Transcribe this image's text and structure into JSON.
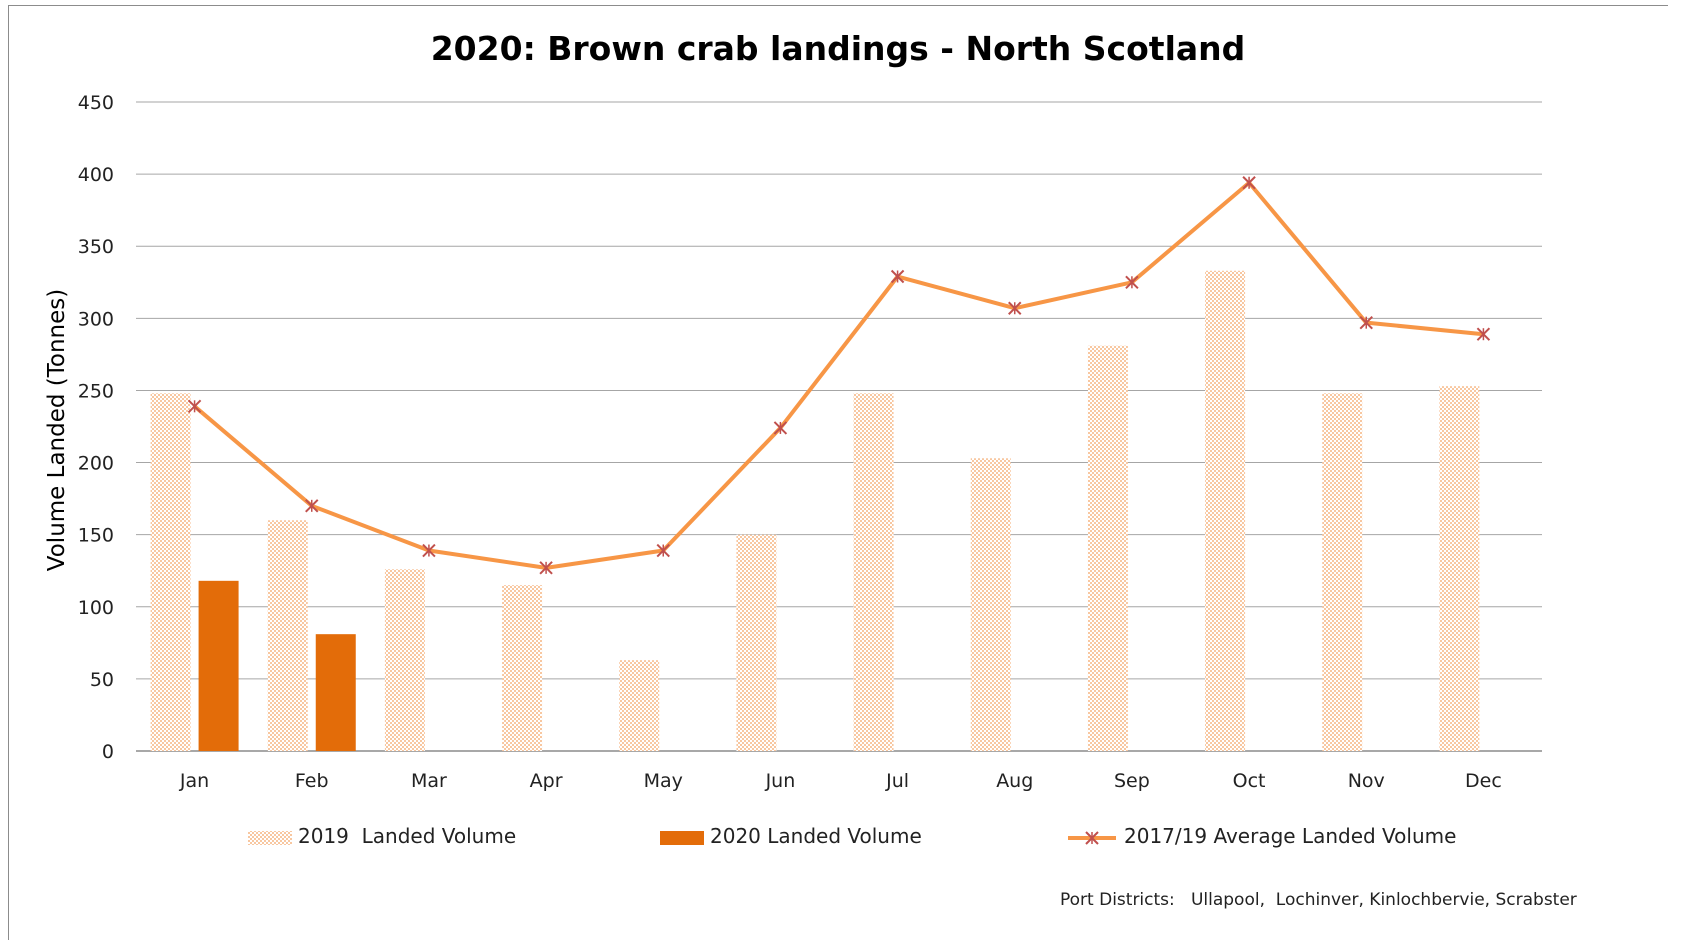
{
  "chart_data": {
    "type": "bar",
    "title": "2020: Brown crab landings - North Scotland",
    "ylabel": "Volume Landed (Tonnes)",
    "xlabel": "",
    "ylim": [
      0,
      450
    ],
    "yticks": [
      0,
      50,
      100,
      150,
      200,
      250,
      300,
      350,
      400,
      450
    ],
    "grid": true,
    "legend_position": "bottom",
    "categories": [
      "Jan",
      "Feb",
      "Mar",
      "Apr",
      "May",
      "Jun",
      "Jul",
      "Aug",
      "Sep",
      "Oct",
      "Nov",
      "Dec"
    ],
    "series": [
      {
        "name": "2019  Landed Volume",
        "type": "bar",
        "style": "pattern",
        "color": "#f8c7a0",
        "values": [
          248,
          160,
          126,
          115,
          63,
          150,
          248,
          203,
          281,
          333,
          248,
          253
        ]
      },
      {
        "name": "2020 Landed Volume",
        "type": "bar",
        "style": "solid",
        "color": "#e36c09",
        "values": [
          118,
          81,
          null,
          null,
          null,
          null,
          null,
          null,
          null,
          null,
          null,
          null
        ]
      },
      {
        "name": "2017/19 Average Landed Volume",
        "type": "line",
        "color": "#f79646",
        "marker_color": "#c0504d",
        "values": [
          239,
          170,
          139,
          127,
          139,
          224,
          329,
          307,
          325,
          394,
          297,
          289
        ]
      }
    ],
    "annotation": "Port Districts:   Ullapool,  Lochinver, Kinlochbervie, Scrabster"
  }
}
